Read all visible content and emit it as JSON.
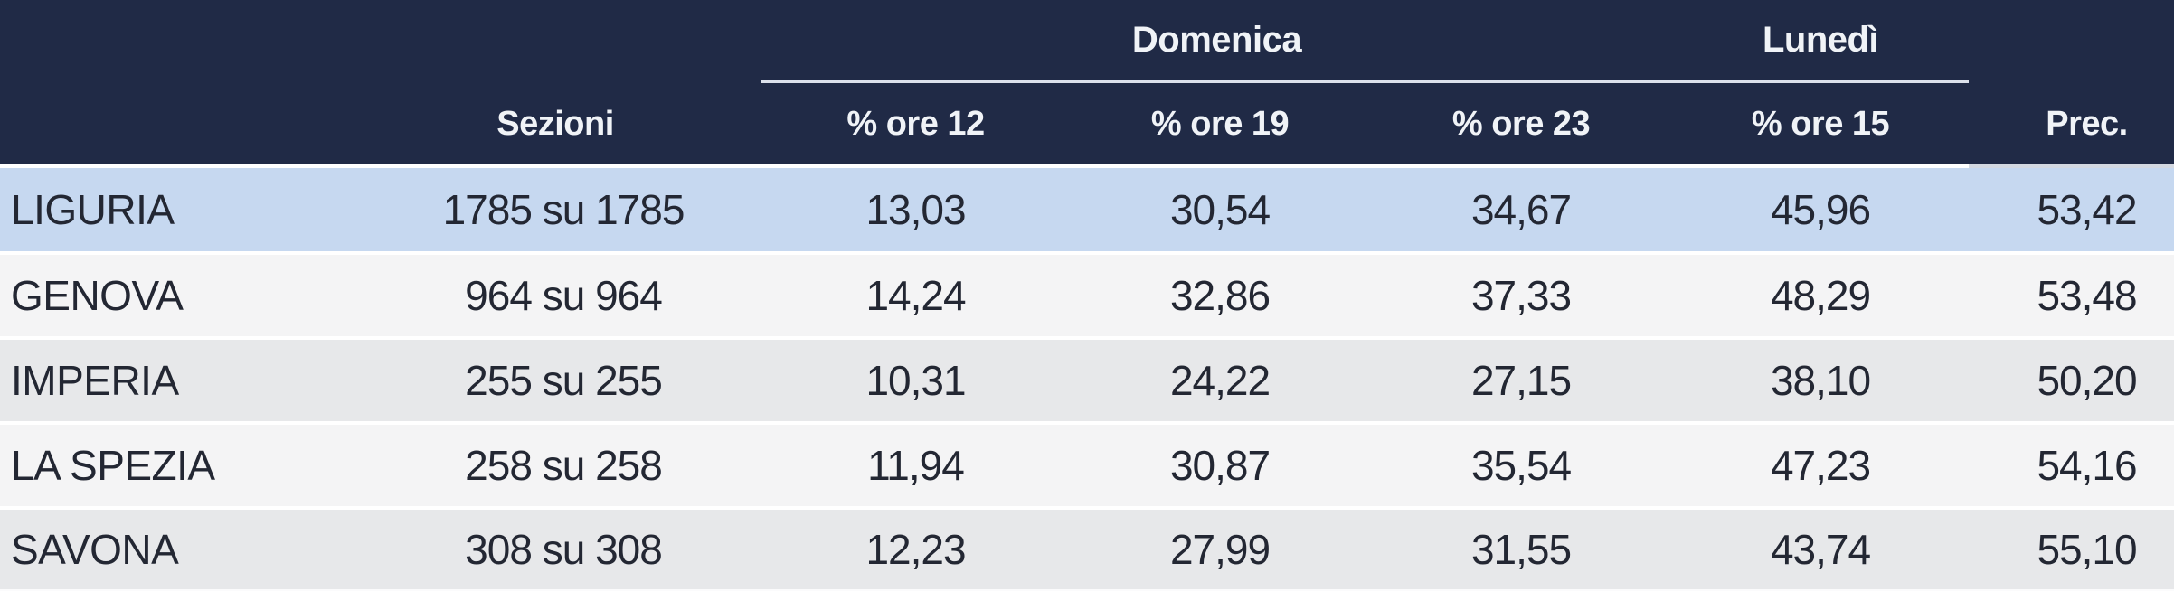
{
  "table": {
    "group_headers": {
      "domenica": "Domenica",
      "lunedi": "Lunedì"
    },
    "columns": {
      "sezioni": "Sezioni",
      "ore12": "% ore 12",
      "ore19": "% ore 19",
      "ore23": "% ore 23",
      "ore15": "% ore 15",
      "prec": "Prec."
    },
    "rows": [
      {
        "name": "LIGURIA",
        "sezioni": "1785 su 1785",
        "ore12": "13,03",
        "ore19": "30,54",
        "ore23": "34,67",
        "ore15": "45,96",
        "prec": "53,42",
        "highlight": true
      },
      {
        "name": "GENOVA",
        "sezioni": "964 su 964",
        "ore12": "14,24",
        "ore19": "32,86",
        "ore23": "37,33",
        "ore15": "48,29",
        "prec": "53,48",
        "highlight": false
      },
      {
        "name": "IMPERIA",
        "sezioni": "255 su 255",
        "ore12": "10,31",
        "ore19": "24,22",
        "ore23": "27,15",
        "ore15": "38,10",
        "prec": "50,20",
        "highlight": false
      },
      {
        "name": "LA SPEZIA",
        "sezioni": "258 su 258",
        "ore12": "11,94",
        "ore19": "30,87",
        "ore23": "35,54",
        "ore15": "47,23",
        "prec": "54,16",
        "highlight": false
      },
      {
        "name": "SAVONA",
        "sezioni": "308 su 308",
        "ore12": "12,23",
        "ore19": "27,99",
        "ore23": "31,55",
        "ore15": "43,74",
        "prec": "55,10",
        "highlight": false
      }
    ],
    "colors": {
      "header-bg": "#202a46",
      "header-text": "#f0f3f7",
      "underline": "#dce1ec",
      "row-highlight": "#c6d8f0",
      "row-light": "#f4f4f5",
      "row-dark": "#e7e8ea",
      "text": "#232733",
      "separator": "#ffffff",
      "prec-separator": "#d3d8e1"
    }
  },
  "chart_data": {
    "type": "table",
    "title": "",
    "column_groups": [
      {
        "label": "Domenica",
        "columns": [
          "% ore 12",
          "% ore 19",
          "% ore 23"
        ]
      },
      {
        "label": "Lunedì",
        "columns": [
          "% ore 15"
        ]
      }
    ],
    "columns": [
      "",
      "Sezioni",
      "% ore 12",
      "% ore 19",
      "% ore 23",
      "% ore 15",
      "Prec."
    ],
    "rows": [
      [
        "LIGURIA",
        "1785 su 1785",
        13.03,
        30.54,
        34.67,
        45.96,
        53.42
      ],
      [
        "GENOVA",
        "964 su 964",
        14.24,
        32.86,
        37.33,
        48.29,
        53.48
      ],
      [
        "IMPERIA",
        "255 su 255",
        10.31,
        24.22,
        27.15,
        38.1,
        50.2
      ],
      [
        "LA SPEZIA",
        "258 su 258",
        11.94,
        30.87,
        35.54,
        47.23,
        54.16
      ],
      [
        "SAVONA",
        "308 su 308",
        12.23,
        27.99,
        31.55,
        43.74,
        55.1
      ]
    ],
    "highlighted_row": "LIGURIA",
    "legend_position": "none",
    "grid": false
  }
}
